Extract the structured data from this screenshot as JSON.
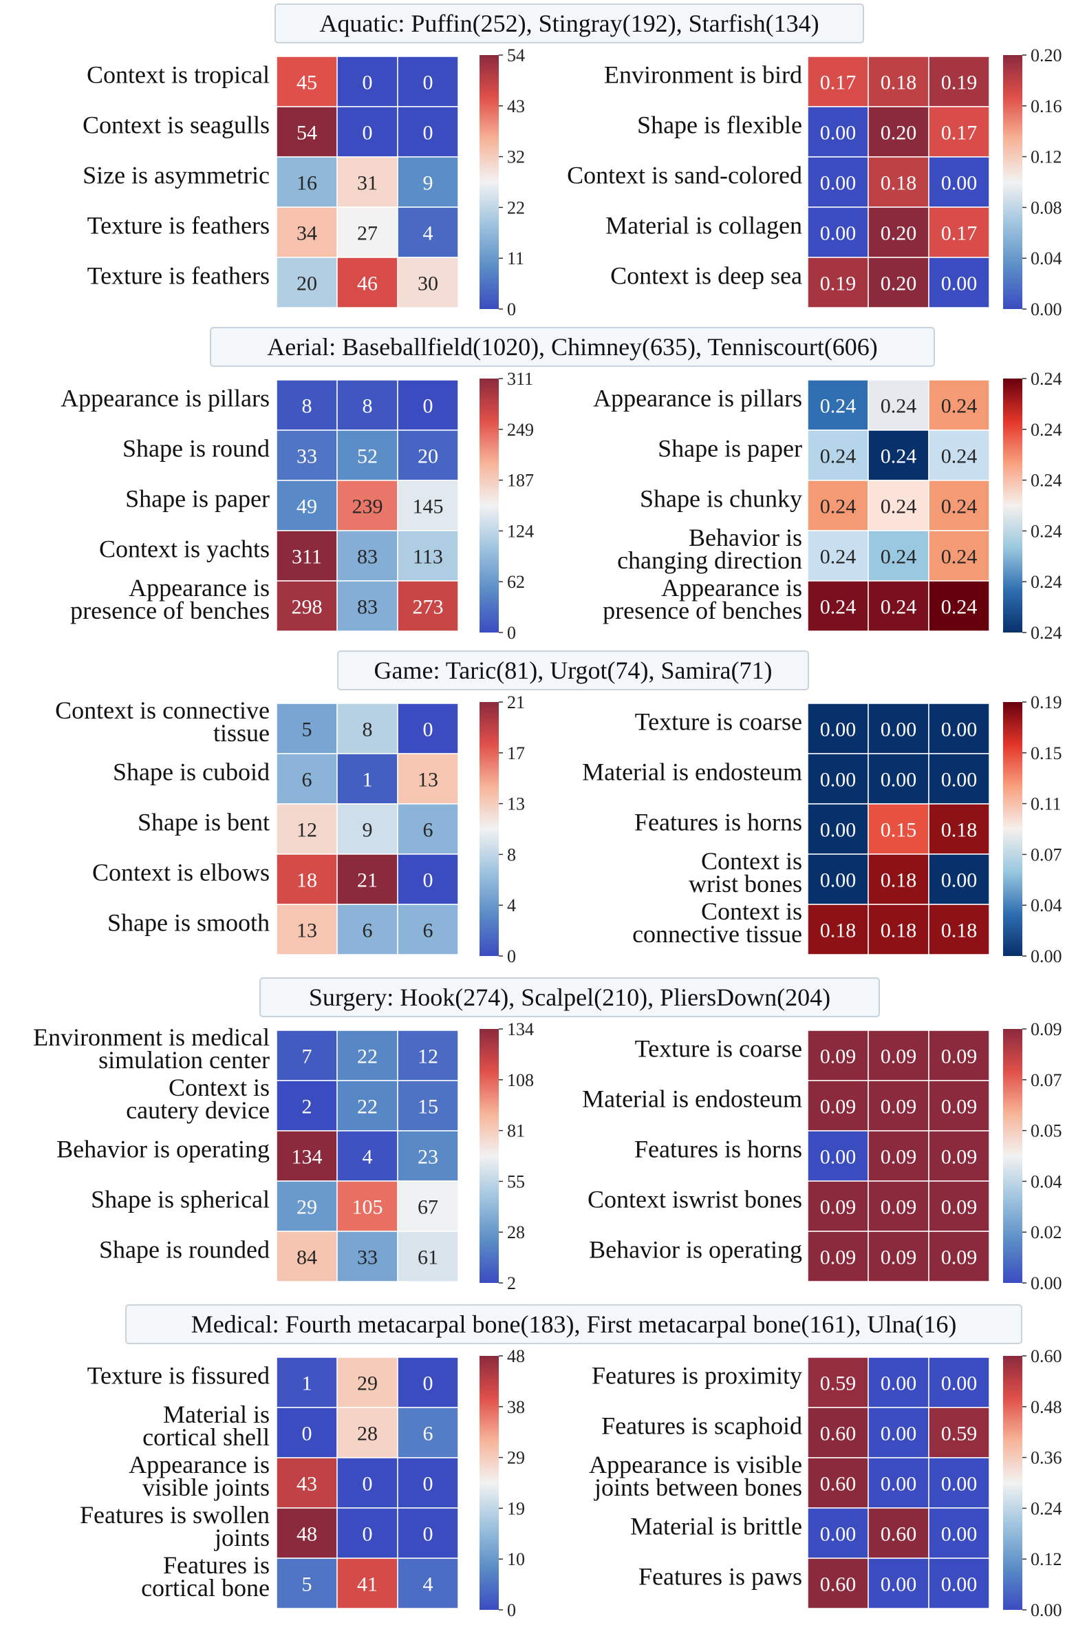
{
  "chart_data": {
    "type": "heatmap",
    "panels": [
      {
        "title": "Aquatic: Puffin(252), Stingray(192), Starfish(134)",
        "left": {
          "rows": [
            [
              "Context is tropical"
            ],
            [
              "Context is seagulls"
            ],
            [
              "Size is asymmetric"
            ],
            [
              "Texture is feathers"
            ],
            [
              "Texture is feathers"
            ]
          ],
          "values": [
            [
              45,
              0,
              0
            ],
            [
              54,
              0,
              0
            ],
            [
              16,
              31,
              9
            ],
            [
              34,
              27,
              4
            ],
            [
              20,
              46,
              30
            ]
          ],
          "vmin": 0,
          "vmax": 54,
          "ticks": [
            "54",
            "43",
            "32",
            "22",
            "11",
            "0"
          ]
        },
        "right": {
          "rows": [
            [
              "Environment is bird"
            ],
            [
              "Shape is flexible"
            ],
            [
              "Context is sand-colored"
            ],
            [
              "Material is collagen"
            ],
            [
              "Context is deep sea"
            ]
          ],
          "values": [
            [
              0.17,
              0.18,
              0.19
            ],
            [
              0.0,
              0.2,
              0.17
            ],
            [
              0.0,
              0.18,
              0.0
            ],
            [
              0.0,
              0.2,
              0.17
            ],
            [
              0.19,
              0.2,
              0.0
            ]
          ],
          "vmin": 0.0,
          "vmax": 0.2,
          "ticks": [
            "0.20",
            "0.16",
            "0.12",
            "0.08",
            "0.04",
            "0.00"
          ]
        }
      },
      {
        "title": "Aerial: Baseballfield(1020),  Chimney(635), Tenniscourt(606)",
        "left": {
          "rows": [
            [
              "Appearance is pillars"
            ],
            [
              "Shape is round"
            ],
            [
              "Shape is paper"
            ],
            [
              "Context is yachts"
            ],
            [
              "Appearance is",
              "presence of benches"
            ]
          ],
          "values": [
            [
              8,
              8,
              0
            ],
            [
              33,
              52,
              20
            ],
            [
              49,
              239,
              145
            ],
            [
              311,
              83,
              113
            ],
            [
              298,
              83,
              273
            ]
          ],
          "vmin": 0,
          "vmax": 311,
          "ticks": [
            "311",
            "249",
            "187",
            "124",
            "62",
            "0"
          ]
        },
        "right": {
          "rows": [
            [
              "Appearance is pillars"
            ],
            [
              "Shape is paper"
            ],
            [
              "Shape is chunky"
            ],
            [
              "Behavior is",
              "changing direction"
            ],
            [
              "Appearance is",
              "presence of benches"
            ]
          ],
          "values": [
            [
              0.24,
              0.24,
              0.24
            ],
            [
              0.24,
              0.24,
              0.24
            ],
            [
              0.24,
              0.24,
              0.24
            ],
            [
              0.24,
              0.24,
              0.24
            ],
            [
              0.24,
              0.24,
              0.24
            ]
          ],
          "ticks": [
            "0.24",
            "0.24",
            "0.24",
            "0.24",
            "0.24",
            "0.24"
          ]
        }
      },
      {
        "title": "Game: Taric(81),  Urgot(74), Samira(71)",
        "left": {
          "rows": [
            [
              "Context is connective",
              "tissue"
            ],
            [
              "Shape is cuboid"
            ],
            [
              "Shape is bent"
            ],
            [
              "Context is elbows"
            ],
            [
              "Shape is smooth"
            ]
          ],
          "values": [
            [
              5,
              8,
              0
            ],
            [
              6,
              1,
              13
            ],
            [
              12,
              9,
              6
            ],
            [
              18,
              21,
              0
            ],
            [
              13,
              6,
              6
            ]
          ],
          "vmin": 0,
          "vmax": 21,
          "ticks": [
            "21",
            "17",
            "13",
            "8",
            "4",
            "0"
          ]
        },
        "right": {
          "rows": [
            [
              "Texture is coarse"
            ],
            [
              "Material is endosteum"
            ],
            [
              "Features is horns"
            ],
            [
              "Context is",
              "wrist bones"
            ],
            [
              "Context is",
              "connective tissue"
            ]
          ],
          "values": [
            [
              0.0,
              0.0,
              0.0
            ],
            [
              0.0,
              0.0,
              0.0
            ],
            [
              0.0,
              0.15,
              0.18
            ],
            [
              0.0,
              0.18,
              0.0
            ],
            [
              0.18,
              0.18,
              0.18
            ]
          ],
          "vmin": 0.0,
          "vmax": 0.19,
          "ticks": [
            "0.19",
            "0.15",
            "0.11",
            "0.07",
            "0.04",
            "0.00"
          ]
        }
      },
      {
        "title": "Surgery: Hook(274),  Scalpel(210), PliersDown(204)",
        "left": {
          "rows": [
            [
              "Environment is medical",
              "simulation center"
            ],
            [
              "Context is",
              "cautery device"
            ],
            [
              "Behavior is operating"
            ],
            [
              "Shape is spherical"
            ],
            [
              "Shape is rounded"
            ]
          ],
          "values": [
            [
              7,
              22,
              12
            ],
            [
              2,
              22,
              15
            ],
            [
              134,
              4,
              23
            ],
            [
              29,
              105,
              67
            ],
            [
              84,
              33,
              61
            ]
          ],
          "vmin": 2,
          "vmax": 134,
          "ticks": [
            "134",
            "108",
            "81",
            "55",
            "28",
            "2"
          ]
        },
        "right": {
          "rows": [
            [
              "Texture is coarse"
            ],
            [
              "Material is endosteum"
            ],
            [
              "Features is horns"
            ],
            [
              "Context iswrist bones"
            ],
            [
              "Behavior is operating"
            ]
          ],
          "values": [
            [
              0.09,
              0.09,
              0.09
            ],
            [
              0.09,
              0.09,
              0.09
            ],
            [
              0.0,
              0.09,
              0.09
            ],
            [
              0.09,
              0.09,
              0.09
            ],
            [
              0.09,
              0.09,
              0.09
            ]
          ],
          "vmin": 0.0,
          "vmax": 0.09,
          "ticks": [
            "0.09",
            "0.07",
            "0.05",
            "0.04",
            "0.02",
            "0.00"
          ]
        }
      },
      {
        "title": "Medical: Fourth metacarpal bone(183),  First metacarpal bone(161), Ulna(16)",
        "left": {
          "rows": [
            [
              "Texture is fissured"
            ],
            [
              "Material is",
              "cortical shell"
            ],
            [
              "Appearance is",
              "visible joints"
            ],
            [
              "Features is swollen",
              "joints"
            ],
            [
              "Features is",
              "cortical bone"
            ]
          ],
          "values": [
            [
              1,
              29,
              0
            ],
            [
              0,
              28,
              6
            ],
            [
              43,
              0,
              0
            ],
            [
              48,
              0,
              0
            ],
            [
              5,
              41,
              4
            ]
          ],
          "vmin": 0,
          "vmax": 48,
          "ticks": [
            "48",
            "38",
            "29",
            "19",
            "10",
            "0"
          ]
        },
        "right": {
          "rows": [
            [
              "Features is proximity"
            ],
            [
              "Features is scaphoid"
            ],
            [
              "Appearance is visible",
              "joints between bones"
            ],
            [
              "Material is brittle"
            ],
            [
              "Features is paws"
            ]
          ],
          "values": [
            [
              0.59,
              0.0,
              0.0
            ],
            [
              0.6,
              0.0,
              0.59
            ],
            [
              0.6,
              0.0,
              0.0
            ],
            [
              0.0,
              0.6,
              0.0
            ],
            [
              0.6,
              0.0,
              0.0
            ]
          ],
          "vmin": 0.0,
          "vmax": 0.6,
          "ticks": [
            "0.60",
            "0.48",
            "0.36",
            "0.24",
            "0.12",
            "0.00"
          ]
        }
      }
    ]
  },
  "colors": {
    "cmap_left": [
      "#3b4cc0",
      "#5b8dc6",
      "#9fc4df",
      "#f2f2f2",
      "#f7b499",
      "#e0504a",
      "#8b2a3d"
    ],
    "cmap_right": [
      "#3b4cc0",
      "#5b8dc6",
      "#9fc4df",
      "#f2f2f2",
      "#f7b499",
      "#e0504a",
      "#8b2a3d"
    ],
    "cmap_dark": [
      "#08306b",
      "#2f6eb0",
      "#9ac8e0",
      "#f5f0ec",
      "#f9a07f",
      "#e2352a",
      "#67000d"
    ],
    "title_box_fill": "#f4f7fa",
    "title_box_stroke": "#c9d3dc"
  },
  "aerial_right_colors": [
    [
      "#2f6eb0",
      "#e6e9ee",
      "#f49a74"
    ],
    [
      "#b6d5ea",
      "#08306b",
      "#c9dff0"
    ],
    [
      "#f49a74",
      "#fbe3da",
      "#f49a74"
    ],
    [
      "#c9dff0",
      "#9ac8e0",
      "#f49a74"
    ],
    [
      "#7a0f1d",
      "#7a0f1d",
      "#67000d"
    ]
  ]
}
